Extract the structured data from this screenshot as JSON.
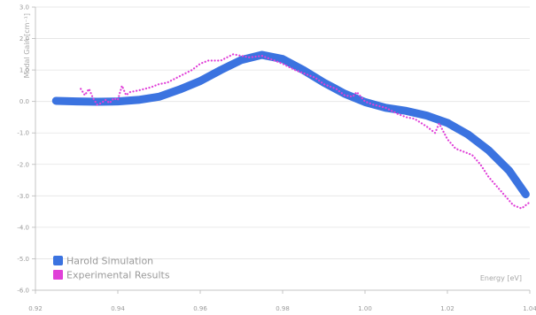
{
  "chart_data": {
    "type": "line",
    "xlabel": "Energy [eV]",
    "ylabel": "Modal Gain [cm⁻¹]",
    "xlim": [
      0.92,
      1.04
    ],
    "ylim": [
      -6.0,
      3.0
    ],
    "x_ticks": [
      "0.92",
      "0.94",
      "0.96",
      "0.98",
      "1.00",
      "1.02",
      "1.04"
    ],
    "y_ticks": [
      "3.0",
      "2.0",
      "1.0",
      "0.0",
      "-1.0",
      "-2.0",
      "-3.0",
      "-4.0",
      "-5.0",
      "-6.0"
    ],
    "grid": "horizontal",
    "legend": "bottom-left",
    "series": [
      {
        "name": "Harold Simulation",
        "color": "#3b73e0",
        "style": "solid-thick",
        "points": [
          [
            0.925,
            0.02
          ],
          [
            0.93,
            0.0
          ],
          [
            0.935,
            -0.01
          ],
          [
            0.94,
            0.0
          ],
          [
            0.945,
            0.05
          ],
          [
            0.95,
            0.15
          ],
          [
            0.955,
            0.38
          ],
          [
            0.96,
            0.65
          ],
          [
            0.965,
            1.0
          ],
          [
            0.97,
            1.32
          ],
          [
            0.975,
            1.48
          ],
          [
            0.98,
            1.35
          ],
          [
            0.985,
            1.0
          ],
          [
            0.99,
            0.6
          ],
          [
            0.995,
            0.25
          ],
          [
            1.0,
            -0.02
          ],
          [
            1.005,
            -0.2
          ],
          [
            1.01,
            -0.3
          ],
          [
            1.015,
            -0.45
          ],
          [
            1.02,
            -0.68
          ],
          [
            1.025,
            -1.05
          ],
          [
            1.03,
            -1.55
          ],
          [
            1.035,
            -2.2
          ],
          [
            1.039,
            -2.95
          ]
        ]
      },
      {
        "name": "Experimental Results",
        "color": "#e040d8",
        "style": "dotted",
        "points": [
          [
            0.931,
            0.4
          ],
          [
            0.932,
            0.2
          ],
          [
            0.933,
            0.4
          ],
          [
            0.934,
            0.1
          ],
          [
            0.935,
            -0.1
          ],
          [
            0.936,
            -0.05
          ],
          [
            0.937,
            0.05
          ],
          [
            0.938,
            -0.05
          ],
          [
            0.939,
            0.1
          ],
          [
            0.94,
            0.05
          ],
          [
            0.941,
            0.5
          ],
          [
            0.942,
            0.2
          ],
          [
            0.943,
            0.3
          ],
          [
            0.945,
            0.35
          ],
          [
            0.948,
            0.45
          ],
          [
            0.95,
            0.55
          ],
          [
            0.952,
            0.6
          ],
          [
            0.955,
            0.8
          ],
          [
            0.958,
            1.0
          ],
          [
            0.96,
            1.2
          ],
          [
            0.962,
            1.3
          ],
          [
            0.965,
            1.3
          ],
          [
            0.968,
            1.5
          ],
          [
            0.97,
            1.45
          ],
          [
            0.972,
            1.4
          ],
          [
            0.975,
            1.45
          ],
          [
            0.978,
            1.3
          ],
          [
            0.98,
            1.2
          ],
          [
            0.983,
            1.0
          ],
          [
            0.985,
            0.9
          ],
          [
            0.988,
            0.75
          ],
          [
            0.99,
            0.55
          ],
          [
            0.993,
            0.4
          ],
          [
            0.995,
            0.2
          ],
          [
            0.997,
            0.15
          ],
          [
            0.998,
            0.3
          ],
          [
            1.0,
            0.0
          ],
          [
            1.002,
            -0.1
          ],
          [
            1.005,
            -0.2
          ],
          [
            1.008,
            -0.4
          ],
          [
            1.01,
            -0.5
          ],
          [
            1.012,
            -0.55
          ],
          [
            1.015,
            -0.8
          ],
          [
            1.017,
            -1.0
          ],
          [
            1.018,
            -0.7
          ],
          [
            1.02,
            -1.2
          ],
          [
            1.022,
            -1.5
          ],
          [
            1.024,
            -1.6
          ],
          [
            1.026,
            -1.7
          ],
          [
            1.028,
            -2.0
          ],
          [
            1.03,
            -2.4
          ],
          [
            1.032,
            -2.7
          ],
          [
            1.034,
            -3.0
          ],
          [
            1.036,
            -3.3
          ],
          [
            1.038,
            -3.4
          ],
          [
            1.04,
            -3.2
          ]
        ]
      }
    ]
  }
}
